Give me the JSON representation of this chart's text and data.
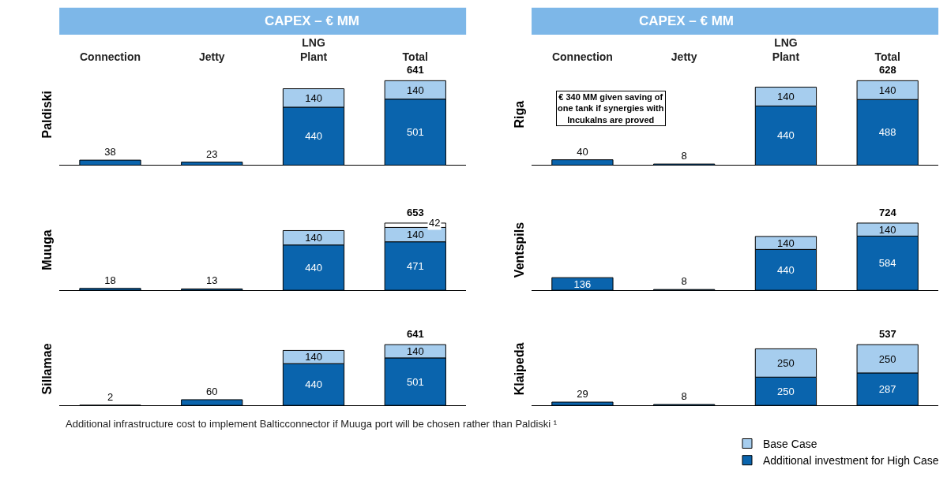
{
  "chart_data": [
    {
      "type": "bar",
      "stacked": true,
      "title": "CAPEX – € MM",
      "ylabel": "Paldiski",
      "categories": [
        "Connection",
        "Jetty",
        "LNG\nPlant",
        "Total"
      ],
      "legend": "bottom right",
      "series": [
        {
          "name": "Additional investment for High Case",
          "color": "#0a64ad",
          "values": [
            38,
            23,
            440,
            501
          ],
          "value_labels": [
            "38",
            "23",
            "440",
            "501"
          ]
        },
        {
          "name": "Base Case",
          "color": "#a6cdee",
          "values": [
            null,
            null,
            140,
            140
          ],
          "value_labels": [
            null,
            null,
            "140",
            "140"
          ]
        }
      ],
      "totals": [
        null,
        null,
        null,
        "641"
      ]
    },
    {
      "type": "bar",
      "stacked": true,
      "title": "CAPEX – € MM",
      "ylabel": "Riga",
      "categories": [
        "Connection",
        "Jetty",
        "LNG\nPlant",
        "Total"
      ],
      "series": [
        {
          "color": "#0a64ad",
          "values": [
            40,
            8,
            440,
            488
          ],
          "value_labels": [
            "40",
            "8",
            "440",
            "488"
          ]
        },
        {
          "color": "#a6cdee",
          "values": [
            null,
            null,
            140,
            140
          ],
          "value_labels": [
            null,
            null,
            "140",
            "140"
          ]
        }
      ],
      "totals": [
        null,
        null,
        null,
        "628"
      ],
      "annotations": [
        "€ 340 MM given saving of\none tank if synergies with\nIncukalns are proved"
      ]
    },
    {
      "type": "bar",
      "stacked": true,
      "ylabel": "Muuga",
      "categories": [
        null,
        null,
        null,
        null
      ],
      "series": [
        {
          "color": "#0a64ad",
          "values": [
            18,
            13,
            440,
            471
          ],
          "value_labels": [
            "18",
            "13",
            "440",
            "471"
          ]
        },
        {
          "color": "#a6cdee",
          "values": [
            null,
            null,
            140,
            140
          ],
          "value_labels": [
            null,
            null,
            "140",
            "140"
          ]
        },
        {
          "color": "#ffffff",
          "values": [
            null,
            null,
            null,
            42
          ],
          "value_labels": [
            null,
            null,
            null,
            "42"
          ]
        }
      ],
      "totals": [
        null,
        null,
        null,
        "653"
      ],
      "annotations": [
        "Additional infrastructure cost to implement Balticconnector if Muuga port will be chosen rather than Paldiski ¹"
      ]
    },
    {
      "type": "bar",
      "stacked": true,
      "ylabel": "Ventspils",
      "categories": [
        null,
        null,
        null,
        null
      ],
      "series": [
        {
          "color": "#0a64ad",
          "values": [
            136,
            8,
            440,
            584
          ],
          "value_labels": [
            "136",
            "8",
            "440",
            "584"
          ]
        },
        {
          "color": "#a6cdee",
          "values": [
            null,
            null,
            140,
            140
          ],
          "value_labels": [
            null,
            null,
            "140",
            "140"
          ]
        }
      ],
      "totals": [
        null,
        null,
        null,
        "724"
      ]
    },
    {
      "type": "bar",
      "stacked": true,
      "ylabel": "Sillamae",
      "categories": [
        null,
        null,
        null,
        null
      ],
      "series": [
        {
          "color": "#0a64ad",
          "values": [
            2,
            60,
            440,
            501
          ],
          "value_labels": [
            "2",
            "60",
            "440",
            "501"
          ]
        },
        {
          "color": "#a6cdee",
          "values": [
            null,
            null,
            140,
            140
          ],
          "value_labels": [
            null,
            null,
            "140",
            "140"
          ]
        }
      ],
      "totals": [
        null,
        null,
        null,
        "641"
      ]
    },
    {
      "type": "bar",
      "stacked": true,
      "ylabel": "Klaipeda",
      "categories": [
        null,
        null,
        null,
        null
      ],
      "series": [
        {
          "color": "#0a64ad",
          "values": [
            29,
            8,
            250,
            287
          ],
          "value_labels": [
            "29",
            "8",
            "250",
            "287"
          ]
        },
        {
          "color": "#a6cdee",
          "values": [
            null,
            null,
            250,
            250
          ],
          "value_labels": [
            null,
            null,
            "250",
            "250"
          ]
        }
      ],
      "totals": [
        null,
        null,
        null,
        "537"
      ]
    }
  ]
}
